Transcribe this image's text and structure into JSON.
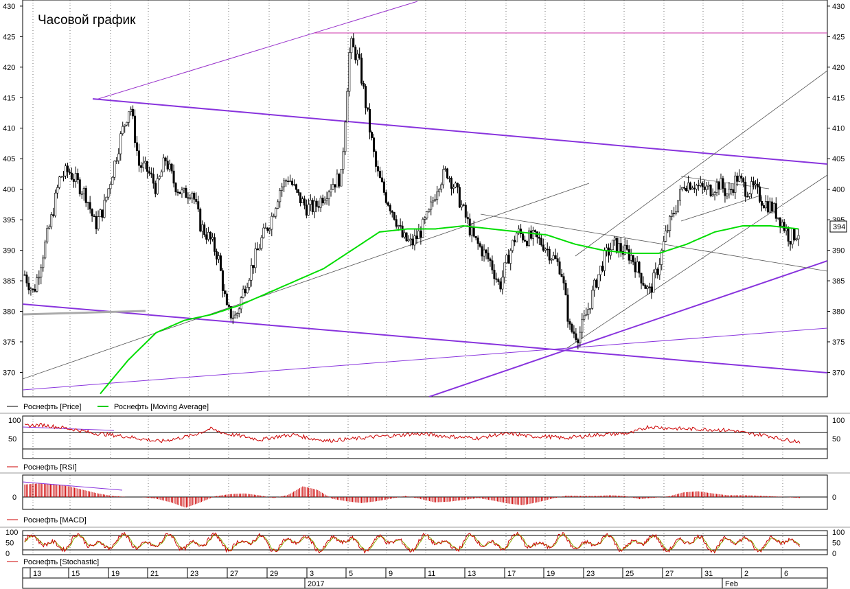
{
  "title": "Часовой график",
  "current_price_label": "394",
  "legends": {
    "price": [
      {
        "label": "Роснефть [Price]",
        "color": "#000000"
      },
      {
        "label": "Роснефть [Moving Average]",
        "color": "#00cc00"
      }
    ],
    "rsi": {
      "label": "Роснефть [RSI]",
      "color": "#cc0000"
    },
    "macd": {
      "label": "Роснефть [MACD]",
      "color": "#cc0000"
    },
    "stochastic": {
      "label": "Роснефть [Stochastic]",
      "color": "#cc0000"
    }
  },
  "x_axis": {
    "ticks": [
      "13",
      "15",
      "19",
      "21",
      "23",
      "27",
      "29",
      "3",
      "5",
      "9",
      "11",
      "13",
      "17",
      "19",
      "23",
      "25",
      "27",
      "31",
      "2",
      "6"
    ],
    "year_label": "2017",
    "month_label": "Feb"
  },
  "chart_data": [
    {
      "type": "candlestick",
      "title": "Часовой график",
      "ylim": [
        366,
        431
      ],
      "y_ticks": [
        370,
        375,
        380,
        385,
        390,
        395,
        400,
        405,
        410,
        415,
        420,
        425,
        430
      ],
      "series": [
        {
          "name": "Роснефть [Price]",
          "approx_closes": [
            386,
            383,
            389,
            395,
            402,
            403,
            401,
            399,
            394,
            397,
            403,
            409,
            414,
            404,
            403,
            400,
            405,
            401,
            399,
            400,
            394,
            392,
            389,
            380,
            379,
            384,
            388,
            392,
            395,
            400,
            402,
            399,
            397,
            397,
            399,
            401,
            402,
            424,
            421,
            412,
            403,
            399,
            396,
            392,
            391,
            393,
            396,
            401,
            403,
            400,
            396,
            392,
            390,
            388,
            384,
            389,
            393,
            392,
            392,
            391,
            389,
            387,
            377,
            376,
            380,
            385,
            389,
            391,
            390,
            389,
            386,
            383,
            387,
            393,
            397,
            401,
            401,
            400,
            400,
            401,
            399,
            402,
            400,
            400,
            398,
            397,
            395,
            392,
            393
          ]
        },
        {
          "name": "Роснефть [Moving Average]",
          "approx_values": [
            366.5,
            372,
            376.5,
            378.5,
            379.5,
            381,
            383,
            385,
            387,
            390,
            393,
            393.5,
            393.5,
            394,
            393.5,
            393,
            392.5,
            391,
            390,
            389.5,
            389.5,
            391,
            393,
            394,
            394,
            393.5
          ]
        }
      ],
      "annotations": {
        "resistance_level": 425.8,
        "trendlines": "purple channel and support lines; gray trend channels"
      }
    },
    {
      "type": "line",
      "name": "Роснефть [RSI]",
      "ylim": [
        0,
        100
      ],
      "y_ticks": [
        50,
        100
      ],
      "levels": [
        30,
        70
      ],
      "approx_values": [
        77,
        79,
        74,
        68,
        60,
        56,
        52,
        46,
        40,
        47,
        55,
        70,
        58,
        52,
        44,
        52,
        56,
        47,
        42,
        45,
        48,
        52,
        54,
        58,
        57,
        52,
        50,
        48,
        56,
        58,
        52,
        52,
        48,
        52,
        56,
        58,
        60,
        75,
        72,
        70,
        69,
        68,
        66,
        58,
        55,
        45,
        40
      ]
    },
    {
      "type": "bar",
      "name": "Роснефть [MACD]",
      "y_ticks": [
        0
      ],
      "approx_values": [
        3.5,
        3.8,
        3.6,
        3,
        2,
        1,
        0.3,
        0,
        0,
        -0.5,
        -1.5,
        -3,
        -1.5,
        0.2,
        0.8,
        1,
        0.5,
        -0.3,
        0.6,
        3,
        2,
        -0.5,
        -1.2,
        -1.7,
        -1.2,
        -0.5,
        0.3,
        -0.5,
        -1.5,
        -1.3,
        -0.8,
        -0.3,
        -1,
        -1.8,
        -2.3,
        -1.5,
        -0.5,
        0.4,
        0.3,
        0.3,
        0.5,
        0.3,
        -0.6,
        -0.2,
        0.2,
        1.3,
        1.6,
        1,
        0.5,
        0.5,
        0.4,
        0.2,
        0,
        -0.3
      ]
    },
    {
      "type": "line",
      "name": "Роснефть [Stochastic]",
      "ylim": [
        0,
        100
      ],
      "y_ticks": [
        0,
        50,
        100
      ],
      "levels": [
        20,
        80
      ]
    }
  ]
}
